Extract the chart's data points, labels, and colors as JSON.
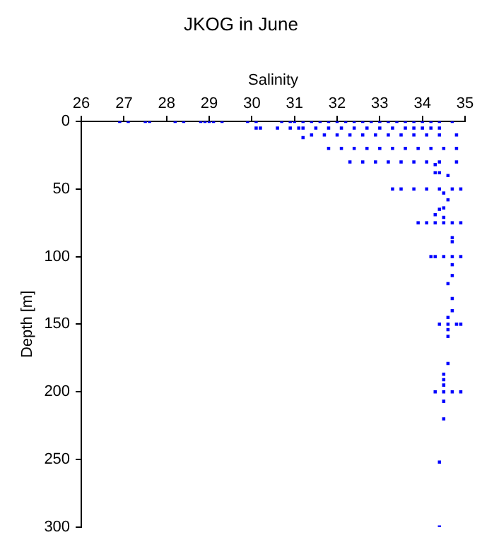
{
  "chart_data": {
    "type": "scatter",
    "title": "JKOG in June",
    "xlabel": "Salinity",
    "ylabel": "Depth [m]",
    "xlim": [
      26,
      35
    ],
    "xticks": [
      26,
      27,
      28,
      29,
      30,
      31,
      32,
      33,
      34,
      35
    ],
    "ylim": [
      300,
      0
    ],
    "yticks": [
      0,
      50,
      100,
      150,
      200,
      250,
      300
    ],
    "grid": false,
    "legend": false,
    "marker": "square",
    "series": [
      {
        "color": "#0000ff",
        "x": [
          26.9,
          27.1,
          27.5,
          27.6,
          28.2,
          28.4,
          28.8,
          28.9,
          29.0,
          29.1,
          29.3,
          29.9,
          30.1,
          30.7,
          30.9,
          31.0,
          31.2,
          31.4,
          31.6,
          31.8,
          32.0,
          32.2,
          32.4,
          32.6,
          32.8,
          33.0,
          33.2,
          33.4,
          33.6,
          33.8,
          34.0,
          34.2,
          34.4,
          34.7,
          30.1,
          30.2,
          30.6,
          30.9,
          31.1,
          31.2,
          31.5,
          31.8,
          32.1,
          32.4,
          32.7,
          33.0,
          33.3,
          33.6,
          33.8,
          34.0,
          34.2,
          34.4,
          31.2,
          31.4,
          31.7,
          32.0,
          32.3,
          32.6,
          32.9,
          33.2,
          33.5,
          33.8,
          34.1,
          34.4,
          34.8,
          31.8,
          32.1,
          32.4,
          32.7,
          33.0,
          33.3,
          33.6,
          33.9,
          34.2,
          34.5,
          34.8,
          32.3,
          32.6,
          32.9,
          33.2,
          33.5,
          33.8,
          34.1,
          34.4,
          34.8,
          34.3,
          34.3,
          34.4,
          34.6,
          33.3,
          33.5,
          33.8,
          34.1,
          34.4,
          34.7,
          34.9,
          34.5,
          34.6,
          34.5,
          34.4,
          34.3,
          34.5,
          33.9,
          34.1,
          34.3,
          34.5,
          34.7,
          34.9,
          34.7,
          34.7,
          34.2,
          34.3,
          34.5,
          34.7,
          34.9,
          34.7,
          34.7,
          34.6,
          34.7,
          34.7,
          34.6,
          34.4,
          34.6,
          34.8,
          34.9,
          34.6,
          34.6,
          34.6,
          34.5,
          34.5,
          34.5,
          34.3,
          34.5,
          34.7,
          34.9,
          34.5,
          34.5,
          34.4,
          34.4
        ],
        "values": [
          0,
          0,
          0,
          0,
          0,
          0,
          0,
          0,
          0,
          0,
          0,
          0,
          0,
          0,
          0,
          0,
          0,
          0,
          0,
          0,
          0,
          0,
          0,
          0,
          0,
          0,
          0,
          0,
          0,
          0,
          0,
          0,
          0,
          0,
          5,
          5,
          5,
          5,
          5,
          5,
          5,
          5,
          5,
          5,
          5,
          5,
          5,
          5,
          5,
          5,
          5,
          5,
          12,
          10,
          10,
          10,
          10,
          10,
          10,
          10,
          10,
          10,
          10,
          10,
          10,
          20,
          20,
          20,
          20,
          20,
          20,
          20,
          20,
          20,
          20,
          20,
          30,
          30,
          30,
          30,
          30,
          30,
          30,
          30,
          30,
          32,
          38,
          38,
          40,
          50,
          50,
          50,
          50,
          50,
          50,
          50,
          53,
          58,
          64,
          65,
          69,
          71,
          75,
          75,
          75,
          75,
          75,
          75,
          86,
          89,
          100,
          100,
          100,
          100,
          100,
          106,
          114,
          120,
          131,
          140,
          145,
          150,
          150,
          150,
          150,
          154,
          159,
          179,
          187,
          191,
          195,
          200,
          200,
          200,
          200,
          207,
          220,
          252,
          300
        ]
      }
    ]
  }
}
